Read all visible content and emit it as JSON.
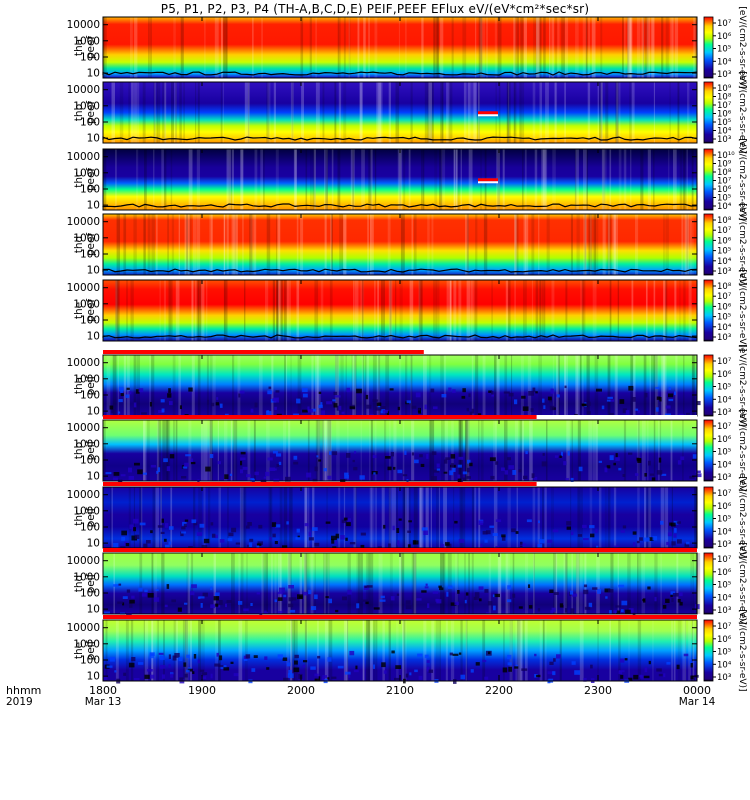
{
  "title": "P5, P1, P2, P3, P4 (TH-A,B,C,D,E) PEIF,PEEF EFlux eV/(eV*cm²*sec*sr)",
  "chart_data": {
    "type": "heatmap",
    "title": "P5, P1, P2, P3, P4 (TH-A,B,C,D,E) PEIF,PEEF EFlux eV/(eV*cm²*sec*sr)",
    "x_axis": {
      "label_top": "hhmm",
      "label_bottom": "2019",
      "range": [
        "1800",
        "0000"
      ],
      "ticks": [
        {
          "label": "1800",
          "sublabel": "Mar 13"
        },
        {
          "label": "1900",
          "sublabel": ""
        },
        {
          "label": "2000",
          "sublabel": ""
        },
        {
          "label": "2100",
          "sublabel": ""
        },
        {
          "label": "2200",
          "sublabel": ""
        },
        {
          "label": "2300",
          "sublabel": ""
        },
        {
          "label": "0000",
          "sublabel": "Mar 14"
        }
      ]
    },
    "y_axis": {
      "scale": "log",
      "range": [
        5,
        30000
      ],
      "ticks": [
        "10",
        "100",
        "1000",
        "10000"
      ]
    },
    "colorbar_label": "[eV/(cm2-s-sr-eV)]",
    "colorbar_scale": "log",
    "colors": {
      "low": "#1800a0",
      "mid_low": "#00c8ff",
      "mid": "#b4ff00",
      "mid_high": "#ffd400",
      "high": "#ff0000",
      "outline": "#000000"
    },
    "panels": [
      {
        "probe": "tha",
        "species": "peef",
        "label_top": "tha",
        "label_bottom": "peef",
        "colorbar_ticks": [
          "10⁷",
          "10⁶",
          "10⁵",
          "10⁴",
          "10³"
        ]
      },
      {
        "probe": "thb",
        "species": "peef",
        "label_top": "thb",
        "label_bottom": "peef",
        "colorbar_ticks": [
          "10⁹",
          "10⁸",
          "10⁷",
          "10⁶",
          "10⁵",
          "10⁴",
          "10³"
        ]
      },
      {
        "probe": "thc",
        "species": "peef",
        "label_top": "thc",
        "label_bottom": "peef",
        "colorbar_ticks": [
          "10¹⁰",
          "10⁹",
          "10⁸",
          "10⁷",
          "10⁶",
          "10⁵",
          "10⁴"
        ]
      },
      {
        "probe": "thd",
        "species": "peef",
        "label_top": "thd",
        "label_bottom": "peef",
        "colorbar_ticks": [
          "10⁸",
          "10⁷",
          "10⁶",
          "10⁵",
          "10⁴",
          "10³"
        ]
      },
      {
        "probe": "the",
        "species": "peef",
        "label_top": "the",
        "label_bottom": "peef",
        "colorbar_ticks": [
          "10⁸",
          "10⁷",
          "10⁶",
          "10⁵",
          "10⁴",
          "10³"
        ]
      },
      {
        "probe": "tha",
        "species": "peif",
        "label_top": "tha",
        "label_bottom": "peif",
        "colorbar_ticks": [
          "10⁷",
          "10⁶",
          "10⁵",
          "10⁴",
          "10³"
        ]
      },
      {
        "probe": "thb",
        "species": "peif",
        "label_top": "thb",
        "label_bottom": "peif",
        "colorbar_ticks": [
          "10⁷",
          "10⁶",
          "10⁵",
          "10⁴",
          "10³"
        ]
      },
      {
        "probe": "thc",
        "species": "peif",
        "label_top": "thc",
        "label_bottom": "peif",
        "colorbar_ticks": [
          "10⁷",
          "10⁶",
          "10⁵",
          "10⁴",
          "10³"
        ]
      },
      {
        "probe": "thd",
        "species": "peif",
        "label_top": "thd",
        "label_bottom": "peif",
        "colorbar_ticks": [
          "10⁷",
          "10⁶",
          "10⁵",
          "10⁴",
          "10³"
        ]
      },
      {
        "probe": "the",
        "species": "peif",
        "label_top": "the",
        "label_bottom": "peif",
        "colorbar_ticks": [
          "10⁷",
          "10⁶",
          "10⁵",
          "10⁴",
          "10³"
        ]
      }
    ]
  }
}
